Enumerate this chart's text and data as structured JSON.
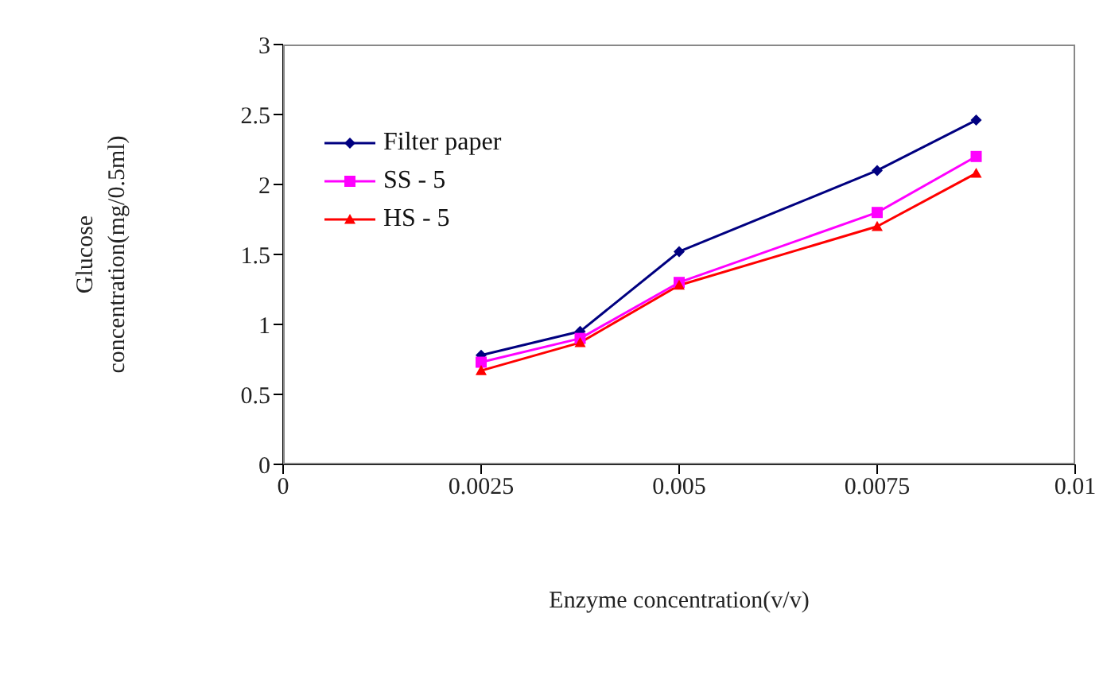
{
  "chart_data": {
    "type": "line",
    "xlabel": "Enzyme concentration(v/v)",
    "ylabel": "Glucose concentration(mg/0.5ml)",
    "x": [
      0.0025,
      0.00375,
      0.005,
      0.0075,
      0.00875
    ],
    "series": [
      {
        "name": "Filter paper",
        "color": "#000080",
        "marker": "diamond",
        "values": [
          0.78,
          0.95,
          1.52,
          2.1,
          2.46
        ]
      },
      {
        "name": "SS - 5",
        "color": "#ff00ff",
        "marker": "square",
        "values": [
          0.73,
          0.9,
          1.3,
          1.8,
          2.2
        ]
      },
      {
        "name": "HS - 5",
        "color": "#ff0000",
        "marker": "triangle",
        "values": [
          0.67,
          0.87,
          1.28,
          1.7,
          2.08
        ]
      }
    ],
    "xlim": [
      0,
      0.01
    ],
    "xticks": [
      0,
      0.0025,
      0.005,
      0.0075,
      0.01
    ],
    "ylim": [
      0,
      3
    ],
    "yticks": [
      0,
      0.5,
      1,
      1.5,
      2,
      2.5,
      3
    ],
    "grid": false,
    "legend": "top left",
    "line_style": "solid"
  }
}
